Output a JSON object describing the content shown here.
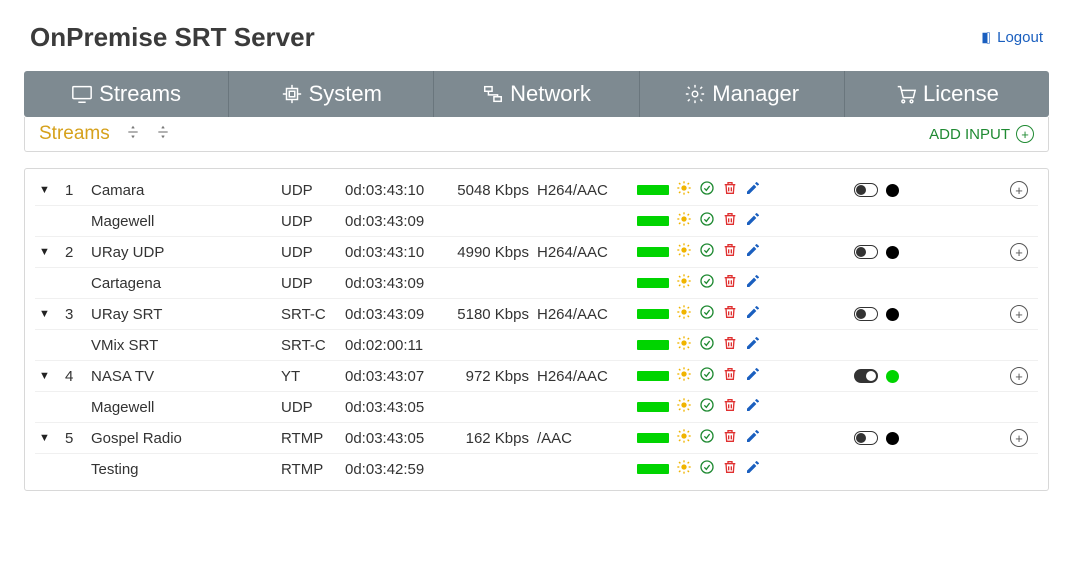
{
  "header": {
    "title": "OnPremise SRT Server",
    "logout_label": "Logout"
  },
  "nav": {
    "items": [
      {
        "label": "Streams",
        "icon": "monitor"
      },
      {
        "label": "System",
        "icon": "cpu"
      },
      {
        "label": "Network",
        "icon": "network"
      },
      {
        "label": "Manager",
        "icon": "gear"
      },
      {
        "label": "License",
        "icon": "cart"
      }
    ]
  },
  "subheader": {
    "title": "Streams",
    "add_label": "ADD INPUT"
  },
  "colors": {
    "nav_bg": "#7e8a91",
    "accent_gold": "#d6a11c",
    "green": "#1f8a32",
    "bar_green": "#00d400",
    "sun": "#f0b400",
    "trash": "#e03030",
    "blue": "#1a5fbf",
    "dot_black": "#000000",
    "dot_green": "#00d400"
  },
  "streams": [
    {
      "idx": "1",
      "name": "Camara",
      "proto": "UDP",
      "uptime": "0d:03:43:10",
      "rate": "5048 Kbps",
      "codec": "H264/AAC",
      "toggle": "off",
      "dot": "#000000",
      "is_parent": true
    },
    {
      "idx": "",
      "name": "Magewell",
      "proto": "UDP",
      "uptime": "0d:03:43:09",
      "rate": "",
      "codec": "",
      "is_parent": false
    },
    {
      "idx": "2",
      "name": "URay UDP",
      "proto": "UDP",
      "uptime": "0d:03:43:10",
      "rate": "4990 Kbps",
      "codec": "H264/AAC",
      "toggle": "off",
      "dot": "#000000",
      "is_parent": true
    },
    {
      "idx": "",
      "name": "Cartagena",
      "proto": "UDP",
      "uptime": "0d:03:43:09",
      "rate": "",
      "codec": "",
      "is_parent": false
    },
    {
      "idx": "3",
      "name": "URay SRT",
      "proto": "SRT-C",
      "uptime": "0d:03:43:09",
      "rate": "5180 Kbps",
      "codec": "H264/AAC",
      "toggle": "off",
      "dot": "#000000",
      "is_parent": true
    },
    {
      "idx": "",
      "name": "VMix SRT",
      "proto": "SRT-C",
      "uptime": "0d:02:00:11",
      "rate": "",
      "codec": "",
      "is_parent": false
    },
    {
      "idx": "4",
      "name": "NASA TV",
      "proto": "YT",
      "uptime": "0d:03:43:07",
      "rate": "972 Kbps",
      "codec": "H264/AAC",
      "toggle": "on",
      "dot": "#00d400",
      "is_parent": true
    },
    {
      "idx": "",
      "name": "Magewell",
      "proto": "UDP",
      "uptime": "0d:03:43:05",
      "rate": "",
      "codec": "",
      "is_parent": false
    },
    {
      "idx": "5",
      "name": "Gospel Radio",
      "proto": "RTMP",
      "uptime": "0d:03:43:05",
      "rate": "162 Kbps",
      "codec": "/AAC",
      "toggle": "off",
      "dot": "#000000",
      "is_parent": true
    },
    {
      "idx": "",
      "name": "Testing",
      "proto": "RTMP",
      "uptime": "0d:03:42:59",
      "rate": "",
      "codec": "",
      "is_parent": false
    }
  ]
}
